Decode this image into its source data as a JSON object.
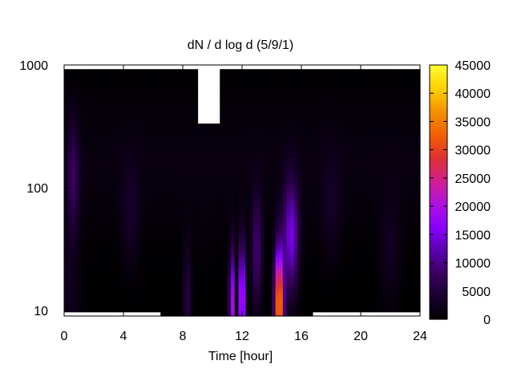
{
  "chart_data": {
    "type": "heatmap",
    "title": "dN / d log d (5/9/1)",
    "xlabel": "Time [hour]",
    "ylabel": "",
    "x_ticks": [
      "0",
      "4",
      "8",
      "12",
      "16",
      "20",
      "24"
    ],
    "y_ticks": [
      "10",
      "100",
      "1000"
    ],
    "xlim": [
      0,
      24
    ],
    "ylim": [
      9,
      1000
    ],
    "y_scale": "log",
    "colorbar_ticks": [
      "0",
      "5000",
      "10000",
      "15000",
      "20000",
      "25000",
      "30000",
      "35000",
      "40000",
      "45000"
    ],
    "colorbar_range": [
      0,
      45000
    ],
    "colormap": [
      "#000000",
      "#1a0030",
      "#3a0060",
      "#5a00b0",
      "#8a00ff",
      "#b010e0",
      "#d02090",
      "#e03030",
      "#f06000",
      "#f59000",
      "#ffd000",
      "#ffff30"
    ],
    "missing_data_color": "#ffffff",
    "series": [
      {
        "x_center": 0.25,
        "y_top": 900,
        "y_low": 10,
        "center": 15,
        "peak": 2500,
        "spread": 0.8
      },
      {
        "x_center": 0.6,
        "y_top": 900,
        "y_low": 10,
        "center": 120,
        "peak": 7000,
        "spread": 0.4
      },
      {
        "x_center": 4.5,
        "y_top": 900,
        "y_low": 9.5,
        "center": 60,
        "peak": 3000,
        "spread": 0.6
      },
      {
        "x_center": 8.3,
        "y_top": 900,
        "y_low": 9,
        "center": 12,
        "peak": 6000,
        "spread": 0.25
      },
      {
        "x_center": 9.6,
        "y_top": 330,
        "y_low": 9,
        "center": 40,
        "peak": 500,
        "spread": 0.5
      },
      {
        "x_center": 11.3,
        "y_top": 900,
        "y_low": 9,
        "center": 11,
        "peak": 25000,
        "spread": 0.15
      },
      {
        "x_center": 12.0,
        "y_top": 900,
        "y_low": 9,
        "center": 12,
        "peak": 26000,
        "spread": 0.2
      },
      {
        "x_center": 13.0,
        "y_top": 900,
        "y_low": 9,
        "center": 30,
        "peak": 9000,
        "spread": 0.35
      },
      {
        "x_center": 14.5,
        "y_top": 900,
        "y_low": 9,
        "center": 11,
        "peak": 38000,
        "spread": 0.3
      },
      {
        "x_center": 15.3,
        "y_top": 900,
        "y_low": 9,
        "center": 40,
        "peak": 15000,
        "spread": 0.5
      },
      {
        "x_center": 18.0,
        "y_top": 900,
        "y_low": 10,
        "center": 70,
        "peak": 2500,
        "spread": 0.7
      },
      {
        "x_center": 22.0,
        "y_top": 900,
        "y_low": 10,
        "center": 30,
        "peak": 2500,
        "spread": 0.7
      }
    ]
  }
}
